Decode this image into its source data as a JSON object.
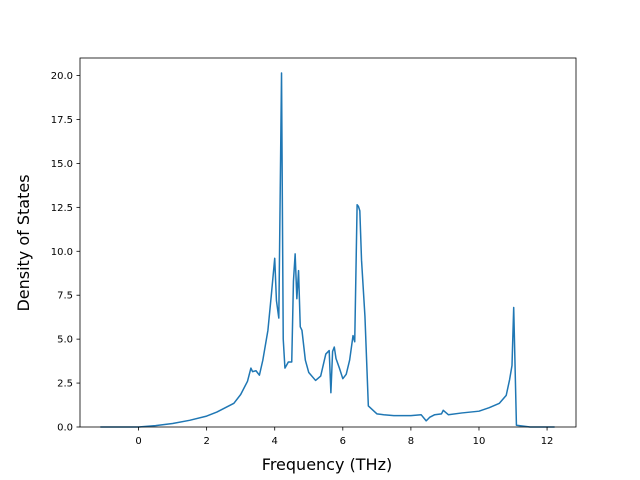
{
  "chart_data": {
    "type": "line",
    "title": "",
    "xlabel": "Frequency (THz)",
    "ylabel": "Density of States",
    "xlim": [
      -1.72,
      12.85
    ],
    "ylim": [
      0,
      21.0
    ],
    "grid": false,
    "legend": "none",
    "color": "#1f77b4",
    "xticks": [
      0,
      2,
      4,
      6,
      8,
      10,
      12
    ],
    "xtick_labels": [
      "0",
      "2",
      "4",
      "6",
      "8",
      "10",
      "12"
    ],
    "yticks": [
      0,
      2.5,
      5,
      7.5,
      10,
      12.5,
      15,
      17.5,
      20
    ],
    "ytick_labels": [
      "0.0",
      "2.5",
      "5.0",
      "7.5",
      "10.0",
      "12.5",
      "15.0",
      "17.5",
      "20.0"
    ],
    "series": [
      {
        "x": [
          -1.1,
          -0.5,
          0.0,
          0.5,
          1.0,
          1.5,
          2.0,
          2.3,
          2.6,
          2.8,
          3.0,
          3.2,
          3.3,
          3.35,
          3.45,
          3.55,
          3.65,
          3.8,
          3.9,
          4.0,
          4.05,
          4.12,
          4.2,
          4.25,
          4.3,
          4.4,
          4.5,
          4.55,
          4.6,
          4.65,
          4.7,
          4.75,
          4.8,
          4.9,
          5.0,
          5.2,
          5.35,
          5.5,
          5.6,
          5.65,
          5.7,
          5.75,
          5.8,
          5.9,
          6.0,
          6.1,
          6.2,
          6.3,
          6.35,
          6.42,
          6.46,
          6.5,
          6.55,
          6.65,
          6.75,
          7.0,
          7.2,
          7.5,
          8.0,
          8.3,
          8.45,
          8.55,
          8.7,
          8.9,
          8.95,
          9.1,
          9.5,
          10.0,
          10.3,
          10.6,
          10.8,
          10.9,
          10.97,
          11.02,
          11.1,
          11.5,
          12.0,
          12.2
        ],
        "y": [
          0,
          0,
          0,
          0.08,
          0.2,
          0.38,
          0.62,
          0.85,
          1.15,
          1.35,
          1.85,
          2.6,
          3.35,
          3.15,
          3.2,
          2.95,
          3.8,
          5.5,
          7.5,
          9.6,
          7.2,
          6.2,
          20.15,
          5.0,
          3.35,
          3.7,
          3.7,
          8.3,
          9.85,
          7.3,
          8.9,
          5.7,
          5.5,
          3.8,
          3.1,
          2.65,
          2.9,
          4.15,
          4.35,
          1.95,
          4.3,
          4.55,
          3.9,
          3.35,
          2.75,
          3.0,
          3.8,
          5.2,
          4.85,
          12.65,
          12.55,
          12.3,
          9.5,
          6.3,
          1.2,
          0.75,
          0.7,
          0.65,
          0.65,
          0.7,
          0.35,
          0.55,
          0.7,
          0.75,
          0.95,
          0.7,
          0.8,
          0.9,
          1.1,
          1.35,
          1.8,
          2.7,
          3.5,
          6.8,
          0.1,
          0,
          0,
          0
        ]
      }
    ]
  }
}
